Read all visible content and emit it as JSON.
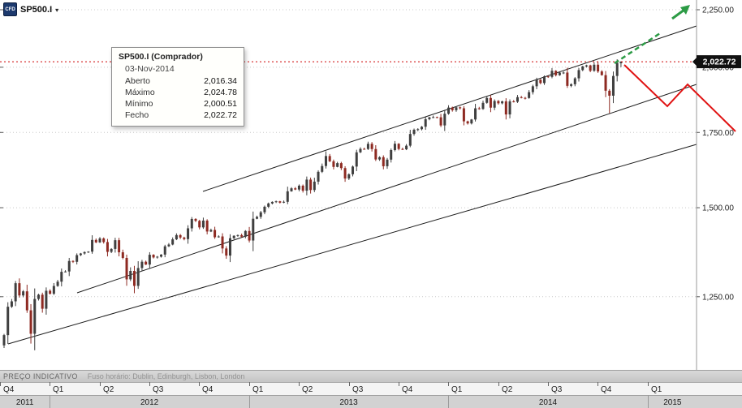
{
  "window": {
    "logo_text": "CFD",
    "instrument": "SP500.I",
    "dropdown_caret": "▾"
  },
  "tooltip": {
    "title": "SP500.I (Comprador)",
    "date": "03-Nov-2014",
    "rows": [
      {
        "label": "Aberto",
        "value": "2,016.34"
      },
      {
        "label": "Máximo",
        "value": "2,024.78"
      },
      {
        "label": "Mínimo",
        "value": "2,000.51"
      },
      {
        "label": "Fecho",
        "value": "2,022.72"
      }
    ]
  },
  "price_axis": {
    "labels": [
      {
        "text": "2,250.00",
        "price": 2250
      },
      {
        "text": "2,000.00",
        "price": 2000
      },
      {
        "text": "1,750.00",
        "price": 1750
      },
      {
        "text": "1,500.00",
        "price": 1500
      },
      {
        "text": "1,250.00",
        "price": 1250
      }
    ],
    "current": {
      "text": "2,022.72",
      "price": 2022.72
    }
  },
  "time_axis": {
    "quarters": [
      "Q4",
      "Q1",
      "Q2",
      "Q3",
      "Q4",
      "Q1",
      "Q2",
      "Q3",
      "Q4",
      "Q1",
      "Q2",
      "Q3",
      "Q4",
      "Q1"
    ],
    "years": [
      {
        "label": "2011",
        "quarters": 1
      },
      {
        "label": "2012",
        "quarters": 4
      },
      {
        "label": "2013",
        "quarters": 4
      },
      {
        "label": "2014",
        "quarters": 4
      },
      {
        "label": "2015",
        "quarters": 1
      }
    ]
  },
  "status_bar": {
    "left": "PREÇO INDICATIVO",
    "right": "Fuso horário: Dublin, Edinburgh, Lisbon, London"
  },
  "chart_data": {
    "type": "candlestick",
    "instrument": "SP500.I",
    "interval": "weekly",
    "range": "Oct 2011 - Nov 2014",
    "scale": "log",
    "ylim": [
      1080,
      2290
    ],
    "first_open": 1131.42,
    "closes": [
      1155.46,
      1224.58,
      1238.25,
      1285.09,
      1253.23,
      1263.85,
      1215.65,
      1158.67,
      1244.28,
      1255.19,
      1219.66,
      1265.33,
      1257.6,
      1277.81,
      1289.09,
      1315.38,
      1316.33,
      1344.9,
      1342.64,
      1361.23,
      1365.74,
      1369.63,
      1370.87,
      1404.17,
      1397.11,
      1408.47,
      1398.08,
      1370.26,
      1378.53,
      1403.36,
      1369.1,
      1353.39,
      1295.22,
      1317.82,
      1278.04,
      1325.66,
      1342.84,
      1335.02,
      1362.16,
      1354.68,
      1356.78,
      1362.66,
      1385.97,
      1390.99,
      1405.87,
      1418.16,
      1411.13,
      1406.58,
      1437.92,
      1465.77,
      1460.15,
      1440.67,
      1460.93,
      1428.59,
      1433.19,
      1411.94,
      1414.2,
      1379.85,
      1359.88,
      1409.15,
      1416.18,
      1418.07,
      1413.58,
      1430.15,
      1402.43,
      1466.47,
      1472.05,
      1485.98,
      1502.96,
      1513.17,
      1517.93,
      1519.79,
      1515.6,
      1518.2,
      1551.18,
      1560.7,
      1556.89,
      1569.19,
      1553.28,
      1588.85,
      1555.25,
      1582.24,
      1614.42,
      1633.7,
      1667.47,
      1649.6,
      1630.74,
      1643.38,
      1626.73,
      1592.43,
      1606.28,
      1631.89,
      1680.19,
      1692.09,
      1691.65,
      1709.67,
      1691.42,
      1655.83,
      1663.5,
      1632.97,
      1655.17,
      1687.99,
      1709.91,
      1691.75,
      1690.5,
      1703.2,
      1744.5,
      1759.77,
      1761.64,
      1770.61,
      1798.18,
      1804.76,
      1805.81,
      1805.09,
      1775.32,
      1818.32,
      1841.4,
      1831.37,
      1842.37,
      1838.7,
      1790.29,
      1782.59,
      1797.02,
      1838.63,
      1836.25,
      1859.45,
      1878.04,
      1841.13,
      1866.52,
      1857.62,
      1865.09,
      1815.69,
      1864.85,
      1863.4,
      1881.14,
      1878.48,
      1877.86,
      1900.53,
      1923.57,
      1949.44,
      1936.16,
      1962.87,
      1960.96,
      1985.44,
      1967.57,
      1978.22,
      1978.34,
      1925.15,
      1931.59,
      1955.06,
      1988.4,
      2003.37,
      2007.71,
      1985.54,
      2010.4,
      1982.85,
      1967.9,
      1906.13,
      1886.76,
      1964.58,
      2018.05,
      2022.72
    ],
    "overrides": {
      "158": {
        "low": 1820.66
      },
      "161": {
        "open": 2016.34,
        "high": 2024.78,
        "low": 2000.51,
        "close": 2022.72
      }
    },
    "last_ohlc": {
      "open": 2016.34,
      "high": 2024.78,
      "low": 2000.51,
      "close": 2022.72
    },
    "annotations": {
      "channel_lines": [
        [
          [
            250,
            236
          ],
          [
            858,
            32
          ]
        ],
        [
          [
            95,
            361
          ],
          [
            858,
            104
          ]
        ],
        [
          [
            10,
            424
          ],
          [
            858,
            178
          ]
        ]
      ],
      "green_dashed_line": [
        [
          757,
          78
        ],
        [
          813,
          41
        ]
      ],
      "green_arrow": {
        "x": 840,
        "y": 13
      },
      "red_projection": [
        [
          769,
          80
        ],
        [
          822,
          131
        ],
        [
          847,
          104
        ],
        [
          906,
          162
        ]
      ]
    },
    "colors": {
      "up": "#3f3f3f",
      "down": "#8e2a22",
      "channel": "#1c1c1c",
      "trend_green": "#2c9b45",
      "projection_red": "#e01212",
      "current_line": "#cc0000",
      "badge_bg": "#111111",
      "gridline": "#c8c8c8"
    }
  }
}
